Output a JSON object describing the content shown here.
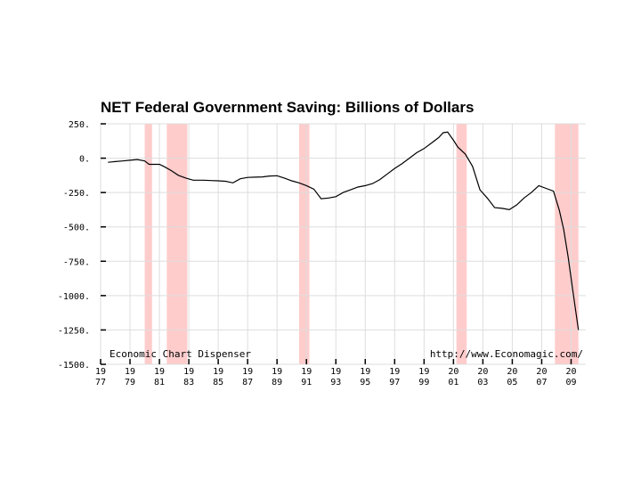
{
  "chart_data": {
    "type": "line",
    "title": "NET Federal Government Saving: Billions of Dollars",
    "xlabel": "",
    "ylabel": "",
    "xlim": [
      1977,
      2010
    ],
    "ylim": [
      -1500,
      250
    ],
    "y_ticks": [
      250,
      0,
      -250,
      -500,
      -750,
      -1000,
      -1250,
      -1500
    ],
    "y_tick_labels": [
      "250.",
      "0.",
      "-250.",
      "-500.",
      "-750.",
      "-1000.",
      "-1250.",
      "-1500."
    ],
    "x_ticks": [
      {
        "year": 1977,
        "top": "19",
        "bottom": "77"
      },
      {
        "year": 1979,
        "top": "19",
        "bottom": "79"
      },
      {
        "year": 1981,
        "top": "19",
        "bottom": "81"
      },
      {
        "year": 1983,
        "top": "19",
        "bottom": "83"
      },
      {
        "year": 1985,
        "top": "19",
        "bottom": "85"
      },
      {
        "year": 1987,
        "top": "19",
        "bottom": "87"
      },
      {
        "year": 1989,
        "top": "19",
        "bottom": "89"
      },
      {
        "year": 1991,
        "top": "19",
        "bottom": "91"
      },
      {
        "year": 1993,
        "top": "19",
        "bottom": "93"
      },
      {
        "year": 1995,
        "top": "19",
        "bottom": "95"
      },
      {
        "year": 1997,
        "top": "19",
        "bottom": "97"
      },
      {
        "year": 1999,
        "top": "19",
        "bottom": "99"
      },
      {
        "year": 2001,
        "top": "20",
        "bottom": "01"
      },
      {
        "year": 2003,
        "top": "20",
        "bottom": "03"
      },
      {
        "year": 2005,
        "top": "20",
        "bottom": "05"
      },
      {
        "year": 2007,
        "top": "20",
        "bottom": "07"
      },
      {
        "year": 2009,
        "top": "20",
        "bottom": "09"
      }
    ],
    "recessions": [
      [
        1980.0,
        1980.5
      ],
      [
        1981.5,
        1982.9
      ],
      [
        1990.5,
        1991.2
      ],
      [
        2001.2,
        2001.9
      ],
      [
        2007.9,
        2009.5
      ]
    ],
    "series": [
      {
        "name": "NET Federal Government Saving",
        "x": [
          1977.5,
          1978.0,
          1978.5,
          1979.0,
          1979.5,
          1980.0,
          1980.3,
          1980.7,
          1981.0,
          1981.3,
          1981.8,
          1982.3,
          1982.8,
          1983.3,
          1984.0,
          1984.5,
          1985.0,
          1985.5,
          1986.0,
          1986.5,
          1987.0,
          1987.5,
          1988.0,
          1988.5,
          1989.0,
          1989.5,
          1990.0,
          1990.5,
          1991.0,
          1991.5,
          1992.0,
          1992.5,
          1993.0,
          1993.5,
          1994.0,
          1994.5,
          1995.0,
          1995.5,
          1996.0,
          1996.5,
          1997.0,
          1997.5,
          1998.0,
          1998.5,
          1999.0,
          1999.5,
          2000.0,
          2000.3,
          2000.6,
          2001.0,
          2001.3,
          2001.8,
          2002.3,
          2002.8,
          2003.3,
          2003.8,
          2004.3,
          2004.8,
          2005.3,
          2005.8,
          2006.3,
          2006.8,
          2007.3,
          2007.8,
          2008.2,
          2008.5,
          2008.8,
          2009.1,
          2009.5
        ],
        "values": [
          -30,
          -25,
          -20,
          -15,
          -10,
          -20,
          -45,
          -45,
          -45,
          -60,
          -90,
          -125,
          -145,
          -160,
          -160,
          -163,
          -165,
          -168,
          -180,
          -150,
          -140,
          -138,
          -136,
          -130,
          -128,
          -145,
          -165,
          -180,
          -200,
          -225,
          -295,
          -290,
          -280,
          -250,
          -230,
          -210,
          -200,
          -185,
          -155,
          -115,
          -75,
          -40,
          0,
          40,
          70,
          110,
          150,
          185,
          190,
          130,
          80,
          30,
          -60,
          -230,
          -290,
          -360,
          -365,
          -375,
          -340,
          -290,
          -250,
          -200,
          -220,
          -240,
          -380,
          -520,
          -720,
          -950,
          -1250
        ]
      }
    ],
    "annotations": [
      "Economic Chart Dispenser",
      "http://www.Economagic.com/"
    ],
    "grid": true,
    "legend": "none"
  }
}
